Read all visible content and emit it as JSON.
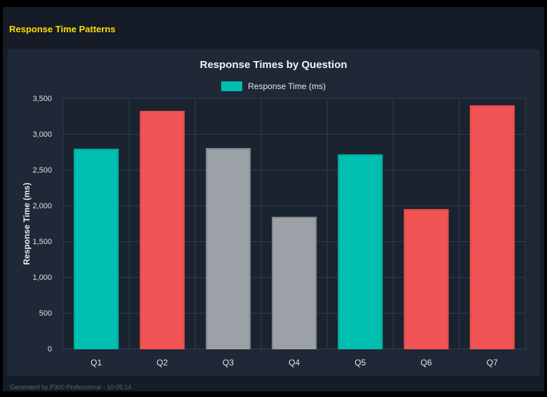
{
  "page": {
    "heading": "Response Time Patterns",
    "footer": "Generated by P300 Professional - 10:05:14"
  },
  "colors": {
    "heading_yellow": "#FFDE00",
    "page_bg": "#151B27",
    "panel_bg": "#1E2836",
    "grid": "#303C51",
    "teal": "#00BEB0",
    "red": "#F05454",
    "gray": "#9CA1A8"
  },
  "chart_data": {
    "type": "bar",
    "title": "Response Times by Question",
    "legend": [
      {
        "label": "Response Time (ms)",
        "color": "#00BEB0"
      }
    ],
    "legend_position": "top",
    "categories": [
      "Q1",
      "Q2",
      "Q3",
      "Q4",
      "Q5",
      "Q6",
      "Q7"
    ],
    "values": [
      2800,
      3330,
      2810,
      1850,
      2730,
      1960,
      3410
    ],
    "bar_colors": [
      "#00BEB0",
      "#F05454",
      "#9CA1A8",
      "#9CA1A8",
      "#00BEB0",
      "#F05454",
      "#F05454"
    ],
    "bar_border_colors": [
      "#00A99C",
      "#E04848",
      "#7F848B",
      "#7F848B",
      "#00A99C",
      "#E04848",
      "#E04848"
    ],
    "xlabel": "",
    "ylabel": "Response Time (ms)",
    "ylim": [
      0,
      3500
    ],
    "ytick_step": 500,
    "yticks": [
      "0",
      "500",
      "1,000",
      "1,500",
      "2,000",
      "2,500",
      "3,000",
      "3,500"
    ],
    "grid": true
  }
}
